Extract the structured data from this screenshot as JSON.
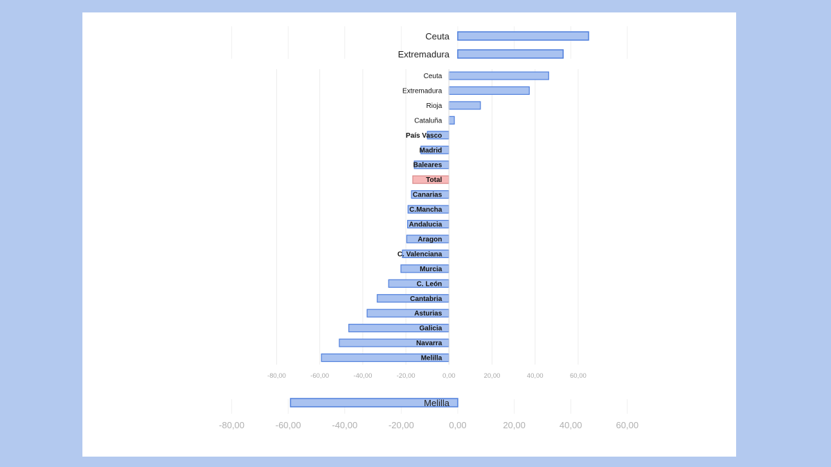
{
  "chart_data": {
    "type": "bar",
    "orientation": "horizontal",
    "title": "",
    "xlabel": "",
    "ylabel": "",
    "xlim": [
      -80,
      60
    ],
    "x_ticks": [
      -80,
      -60,
      -40,
      -20,
      0,
      20,
      40,
      60
    ],
    "x_tick_labels": [
      "-80,00",
      "-60,00",
      "-40,00",
      "-20,00",
      "0,00",
      "20,00",
      "40,00",
      "60,00"
    ],
    "grid": true,
    "legend": "none",
    "categories": [
      "Ceuta",
      "Extremadura",
      "Rioja",
      "Cataluña",
      "País Vasco",
      "Madrid",
      "Baleares",
      "Total",
      "Canarias",
      "C.Mancha",
      "Andalucia",
      "Aragon",
      "C. Valenciana",
      "Murcia",
      "C. León",
      "Cantabria",
      "Asturias",
      "Galicia",
      "Navarra",
      "Melilla"
    ],
    "values": [
      46.3,
      37.3,
      14.6,
      2.5,
      -10.0,
      -13.0,
      -16.1,
      -16.8,
      -17.4,
      -19.0,
      -19.2,
      -19.6,
      -21.6,
      -22.3,
      -28.0,
      -33.3,
      -38.0,
      -46.5,
      -50.9,
      -59.2
    ],
    "colors": {
      "default": "#a9c2f0",
      "default_border": "#4f7fdc",
      "highlight": "#f7b8b8",
      "highlight_border": "#d98a8a",
      "highlight_category": "Total"
    }
  }
}
